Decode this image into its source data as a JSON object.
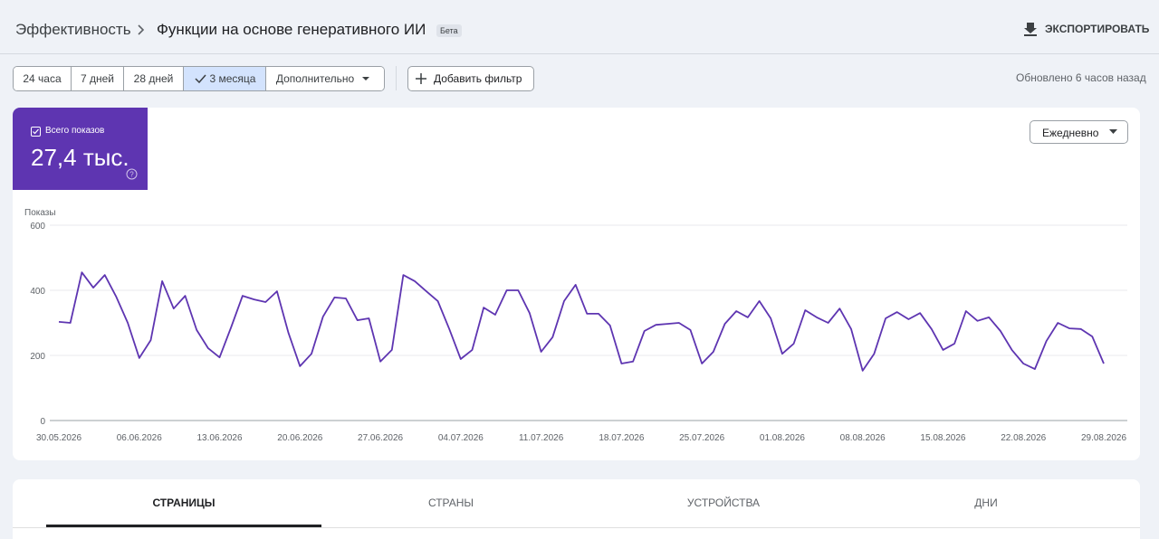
{
  "header": {
    "breadcrumb": "Эффективность",
    "title": "Функции на основе генеративного ИИ",
    "badge": "Бета",
    "export": "ЭКСПОРТИРОВАТЬ"
  },
  "filters": {
    "ranges": [
      "24 часа",
      "7 дней",
      "28 дней",
      "3 месяца"
    ],
    "more": "Дополнительно",
    "add_filter": "Добавить фильтр",
    "updated": "Обновлено 6 часов назад"
  },
  "metric": {
    "label": "Всего показов",
    "value": "27,4 тыс."
  },
  "granularity": "Ежедневно",
  "chart_data": {
    "type": "line",
    "y_label": "Показы",
    "color": "#5e35b1",
    "ylim": [
      0,
      600
    ],
    "yticks": [
      0,
      200,
      400,
      600
    ],
    "grid": true,
    "categories": [
      "30.05.2026",
      null,
      null,
      null,
      null,
      null,
      null,
      "06.06.2026",
      null,
      null,
      null,
      null,
      null,
      null,
      "13.06.2026",
      null,
      null,
      null,
      null,
      null,
      null,
      "20.06.2026",
      null,
      null,
      null,
      null,
      null,
      null,
      "27.06.2026",
      null,
      null,
      null,
      null,
      null,
      null,
      "04.07.2026",
      null,
      null,
      null,
      null,
      null,
      null,
      "11.07.2026",
      null,
      null,
      null,
      null,
      null,
      null,
      "18.07.2026",
      null,
      null,
      null,
      null,
      null,
      null,
      "25.07.2026",
      null,
      null,
      null,
      null,
      null,
      null,
      "01.08.2026",
      null,
      null,
      null,
      null,
      null,
      null,
      "08.08.2026",
      null,
      null,
      null,
      null,
      null,
      null,
      "15.08.2026",
      null,
      null,
      null,
      null,
      null,
      null,
      "22.08.2026",
      null,
      null,
      null,
      null,
      null,
      null,
      "29.08.2026"
    ],
    "values": [
      303,
      300,
      455,
      408,
      447,
      380,
      300,
      192,
      247,
      428,
      344,
      383,
      278,
      222,
      194,
      286,
      383,
      372,
      364,
      397,
      269,
      167,
      205,
      319,
      378,
      375,
      308,
      314,
      181,
      217,
      447,
      428,
      397,
      367,
      281,
      189,
      217,
      347,
      325,
      400,
      400,
      330,
      211,
      256,
      367,
      417,
      328,
      328,
      292,
      175,
      181,
      275,
      294,
      297,
      300,
      278,
      175,
      211,
      297,
      336,
      317,
      367,
      314,
      205,
      236,
      339,
      317,
      300,
      344,
      281,
      153,
      205,
      314,
      333,
      311,
      330,
      281,
      217,
      236,
      336,
      306,
      317,
      275,
      217,
      175,
      158,
      244,
      300,
      283,
      281,
      258,
      175
    ]
  },
  "tabs": [
    "СТРАНИЦЫ",
    "СТРАНЫ",
    "УСТРОЙСТВА",
    "ДНИ"
  ]
}
